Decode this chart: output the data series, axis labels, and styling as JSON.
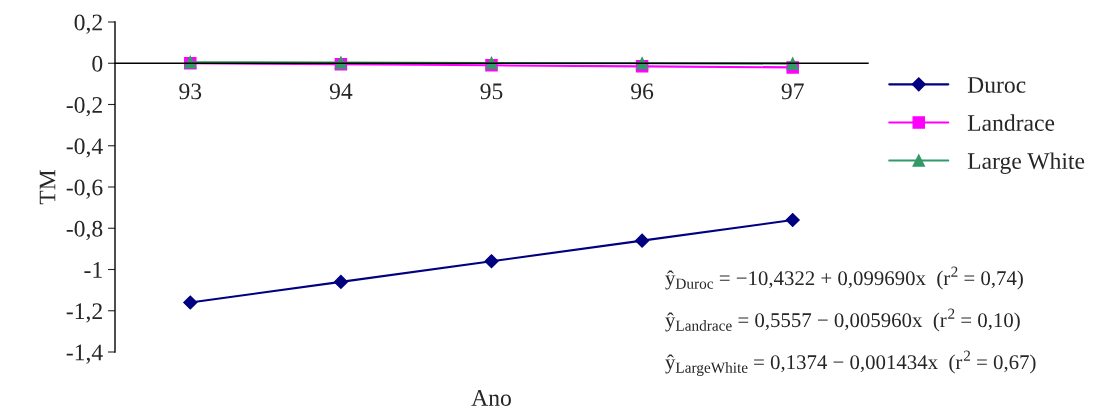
{
  "chart_data": {
    "type": "line",
    "xlabel": "Ano",
    "ylabel": "TM",
    "categories": [
      "93",
      "94",
      "95",
      "96",
      "97"
    ],
    "series": [
      {
        "name": "Duroc",
        "color": "#000080",
        "marker": "diamond",
        "values": [
          -1.16,
          -1.06,
          -0.96,
          -0.86,
          -0.76
        ]
      },
      {
        "name": "Landrace",
        "color": "#ff00ff",
        "marker": "square",
        "values": [
          0.0,
          -0.005,
          -0.01,
          -0.015,
          -0.02
        ]
      },
      {
        "name": "Large White",
        "color": "#339966",
        "marker": "triangle",
        "values": [
          0.005,
          0.003,
          0.001,
          0.0,
          -0.002
        ]
      }
    ],
    "ylim": [
      -1.4,
      0.2
    ],
    "yticks": [
      {
        "value": 0.2,
        "label": "0,2"
      },
      0,
      {
        "value": -0.2,
        "label": "-0,2"
      },
      {
        "value": -0.4,
        "label": "-0,4"
      },
      {
        "value": -0.6,
        "label": "-0,6"
      },
      {
        "value": -0.8,
        "label": "-0,8"
      },
      -1,
      {
        "value": -1.2,
        "label": "-1,2"
      },
      {
        "value": -1.4,
        "label": "-1,4"
      }
    ],
    "grid": false,
    "legend": "right",
    "annotations": [
      "ŷ$_{Duroc}$ = −10,4322 + 0,099690x  (r$^{2}$ = 0,74)",
      "ŷ$_{Landrace}$ = 0,5557 − 0,005960x  (r$^{2}$ = 0,10)",
      "ŷ$_{LargeWhite}$ = 0,1374 − 0,001434x  (r$^{2}$ = 0,67)"
    ]
  }
}
